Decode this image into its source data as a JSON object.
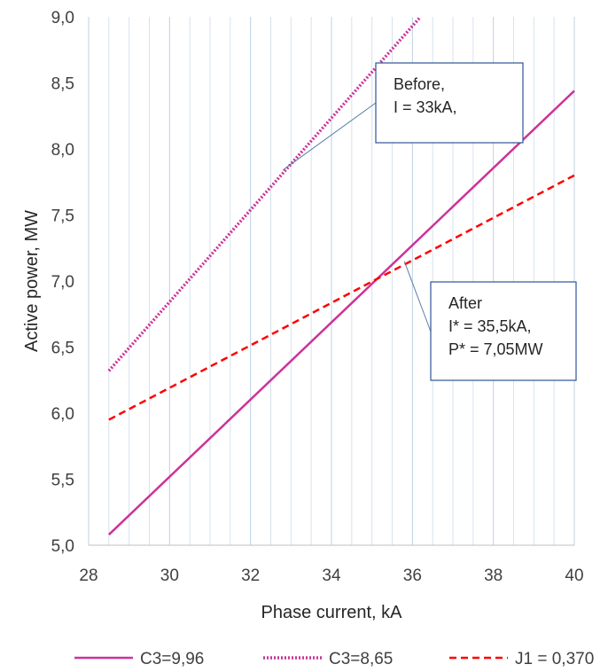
{
  "chart_data": {
    "type": "line",
    "title": "",
    "xlabel": "Phase current, kA",
    "ylabel": "Active power, MW",
    "xlim": [
      28,
      40
    ],
    "ylim": [
      5.0,
      9.0
    ],
    "x_ticks": [
      28,
      30,
      32,
      34,
      36,
      38,
      40
    ],
    "x_tick_labels": [
      "28",
      "30",
      "32",
      "34",
      "36",
      "38",
      "40"
    ],
    "y_ticks": [
      5.0,
      5.5,
      6.0,
      6.5,
      7.0,
      7.5,
      8.0,
      8.5,
      9.0
    ],
    "y_tick_labels": [
      "5,0",
      "5,5",
      "6,0",
      "6,5",
      "7,0",
      "7,5",
      "8,0",
      "8,5",
      "9,0"
    ],
    "grid": "vertical",
    "legend_position": "bottom",
    "series": [
      {
        "name": "C3=9,96",
        "style": "solid",
        "color": "#cc3399",
        "x": [
          28.5,
          40
        ],
        "y": [
          5.08,
          8.44
        ]
      },
      {
        "name": "C3=8,65",
        "style": "dotted",
        "color": "#cc3399",
        "x": [
          28.5,
          36.2
        ],
        "y": [
          6.32,
          9.0
        ]
      },
      {
        "name": "J1 = 0,370",
        "style": "dashed",
        "color": "#ff0000",
        "x": [
          28.5,
          40
        ],
        "y": [
          5.95,
          7.8
        ]
      }
    ],
    "annotations": [
      {
        "lines": [
          "Before,",
          "I = 33kA,"
        ],
        "pointer": [
          32.8,
          7.84
        ]
      },
      {
        "lines": [
          "After",
          "I* = 35,5kA,",
          "P* = 7,05MW"
        ],
        "pointer": [
          35.8,
          7.15
        ]
      }
    ]
  }
}
